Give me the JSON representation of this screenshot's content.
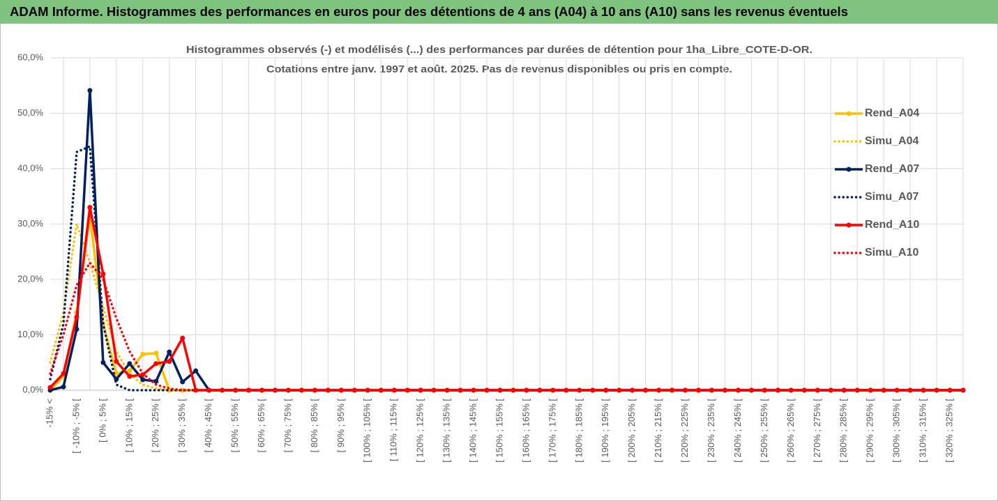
{
  "chart_data": {
    "type": "line",
    "title": "ADAM Informe. Histogrammes des performances en euros pour des détentions de 4 ans (A04) à 10 ans (A10) sans les revenus éventuels",
    "subtitle": [
      "Histogrammes observés (-) et modélisés (...) des performances par durées de détention pour 1ha_Libre_COTE-D-OR.",
      "Cotations entre janv. 1997 et août. 2025. Pas de revenus disponibles ou pris en compte."
    ],
    "categories": [
      "-15% <",
      null,
      "[ -10% ; -5% [",
      null,
      "[ 0% ; 5% [",
      null,
      "[ 10% ; 15% [",
      null,
      "[ 20% ; 25% [",
      null,
      "[ 30% ; 35% [",
      null,
      "[ 40% ; 45% [",
      null,
      "[ 50% ; 55% [",
      null,
      "[ 60% ; 65% [",
      null,
      "[ 70% ; 75% [",
      null,
      "[ 80% ; 85% [",
      null,
      "[ 90% ; 95% [",
      null,
      "[ 100% ; 105% [",
      null,
      "[ 110% ; 115% [",
      null,
      "[ 120% ; 125% [",
      null,
      "[ 130% ; 135% [",
      null,
      "[ 140% ; 145% [",
      null,
      "[ 150% ; 155% [",
      null,
      "[ 160% ; 165% [",
      null,
      "[ 170% ; 175% [",
      null,
      "[ 180% ; 185% [",
      null,
      "[ 190% ; 195% [",
      null,
      "[ 200% ; 205% [",
      null,
      "[ 210% ; 215% [",
      null,
      "[ 220% ; 225% [",
      null,
      "[ 230% ; 235% [",
      null,
      "[ 240% ; 245% [",
      null,
      "[ 250% ; 255% [",
      null,
      "[ 260% ; 265% [",
      null,
      "[ 270% ; 275% [",
      null,
      "[ 280% ; 285% [",
      null,
      "[ 290% ; 295% [",
      null,
      "[ 300% ; 305% [",
      null,
      "[ 310% ; 315% [",
      null,
      "[ 320% ; 325% [",
      null
    ],
    "series": [
      {
        "name": "Rend_A04",
        "color": "#ffc000",
        "style": "solid",
        "markers": true,
        "values": [
          0,
          2.5,
          14,
          31.5,
          12,
          3,
          3.5,
          6.5,
          6.7,
          0,
          0,
          0,
          0,
          0,
          0,
          0,
          0,
          0,
          0,
          0,
          0,
          0,
          0,
          0,
          0,
          0,
          0,
          0,
          0,
          0,
          0,
          0,
          0,
          0,
          0,
          0,
          0,
          0,
          0,
          0,
          0,
          0,
          0,
          0,
          0,
          0,
          0,
          0,
          0,
          0,
          0,
          0,
          0,
          0,
          0,
          0,
          0,
          0,
          0,
          0,
          0,
          0,
          0,
          0,
          0,
          0,
          0,
          0,
          0,
          0
        ]
      },
      {
        "name": "Simu_A04",
        "color": "#ffc000",
        "style": "dotted",
        "markers": false,
        "values": [
          5,
          14,
          30,
          23,
          15,
          7,
          3,
          1,
          0.3,
          0,
          0,
          0,
          0,
          0,
          0,
          0,
          0,
          0,
          0,
          0,
          0,
          0,
          0,
          0,
          0,
          0,
          0,
          0,
          0,
          0,
          0,
          0,
          0,
          0,
          0,
          0,
          0,
          0,
          0,
          0,
          0,
          0,
          0,
          0,
          0,
          0,
          0,
          0,
          0,
          0,
          0,
          0,
          0,
          0,
          0,
          0,
          0,
          0,
          0,
          0,
          0,
          0,
          0,
          0,
          0,
          0,
          0,
          0,
          0,
          0
        ]
      },
      {
        "name": "Rend_A07",
        "color": "#002060",
        "style": "solid",
        "markers": true,
        "values": [
          0,
          0.6,
          11,
          54.1,
          5,
          2,
          4.8,
          1.9,
          1.6,
          6.9,
          1.5,
          3.5,
          0,
          0,
          0,
          0,
          0,
          0,
          0,
          0,
          0,
          0,
          0,
          0,
          0,
          0,
          0,
          0,
          0,
          0,
          0,
          0,
          0,
          0,
          0,
          0,
          0,
          0,
          0,
          0,
          0,
          0,
          0,
          0,
          0,
          0,
          0,
          0,
          0,
          0,
          0,
          0,
          0,
          0,
          0,
          0,
          0,
          0,
          0,
          0,
          0,
          0,
          0,
          0,
          0,
          0,
          0,
          0,
          0,
          0
        ]
      },
      {
        "name": "Simu_A07",
        "color": "#002060",
        "style": "dotted",
        "markers": false,
        "values": [
          2,
          12,
          43,
          44,
          12,
          1,
          0,
          0,
          0,
          0,
          0,
          0,
          0,
          0,
          0,
          0,
          0,
          0,
          0,
          0,
          0,
          0,
          0,
          0,
          0,
          0,
          0,
          0,
          0,
          0,
          0,
          0,
          0,
          0,
          0,
          0,
          0,
          0,
          0,
          0,
          0,
          0,
          0,
          0,
          0,
          0,
          0,
          0,
          0,
          0,
          0,
          0,
          0,
          0,
          0,
          0,
          0,
          0,
          0,
          0,
          0,
          0,
          0,
          0,
          0,
          0,
          0,
          0,
          0,
          0
        ]
      },
      {
        "name": "Rend_A10",
        "color": "#ff0000",
        "style": "solid",
        "markers": true,
        "values": [
          0.5,
          3,
          13.2,
          33,
          21,
          5.2,
          2.5,
          2.8,
          4.8,
          5.2,
          9.4,
          0,
          0,
          0,
          0,
          0,
          0,
          0,
          0,
          0,
          0,
          0,
          0,
          0,
          0,
          0,
          0,
          0,
          0,
          0,
          0,
          0,
          0,
          0,
          0,
          0,
          0,
          0,
          0,
          0,
          0,
          0,
          0,
          0,
          0,
          0,
          0,
          0,
          0,
          0,
          0,
          0,
          0,
          0,
          0,
          0,
          0,
          0,
          0,
          0,
          0,
          0,
          0,
          0,
          0,
          0,
          0,
          0,
          0,
          0
        ]
      },
      {
        "name": "Simu_A10",
        "color": "#ff0000",
        "style": "dotted",
        "markers": false,
        "values": [
          3,
          10,
          19,
          23,
          20,
          13,
          7,
          3,
          1,
          0.3,
          0,
          0,
          0,
          0,
          0,
          0,
          0,
          0,
          0,
          0,
          0,
          0,
          0,
          0,
          0,
          0,
          0,
          0,
          0,
          0,
          0,
          0,
          0,
          0,
          0,
          0,
          0,
          0,
          0,
          0,
          0,
          0,
          0,
          0,
          0,
          0,
          0,
          0,
          0,
          0,
          0,
          0,
          0,
          0,
          0,
          0,
          0,
          0,
          0,
          0,
          0,
          0,
          0,
          0,
          0,
          0,
          0,
          0,
          0,
          0
        ]
      }
    ],
    "ylim": [
      0,
      60
    ],
    "yticks": [
      {
        "value": 0,
        "label": "0,0%"
      },
      {
        "value": 10,
        "label": "10,0%"
      },
      {
        "value": 20,
        "label": "20,0%"
      },
      {
        "value": 30,
        "label": "30,0%"
      },
      {
        "value": 40,
        "label": "40,0%"
      },
      {
        "value": 50,
        "label": "50,0%"
      },
      {
        "value": 60,
        "label": "60,0%"
      }
    ],
    "grid": true,
    "legend": "right"
  }
}
